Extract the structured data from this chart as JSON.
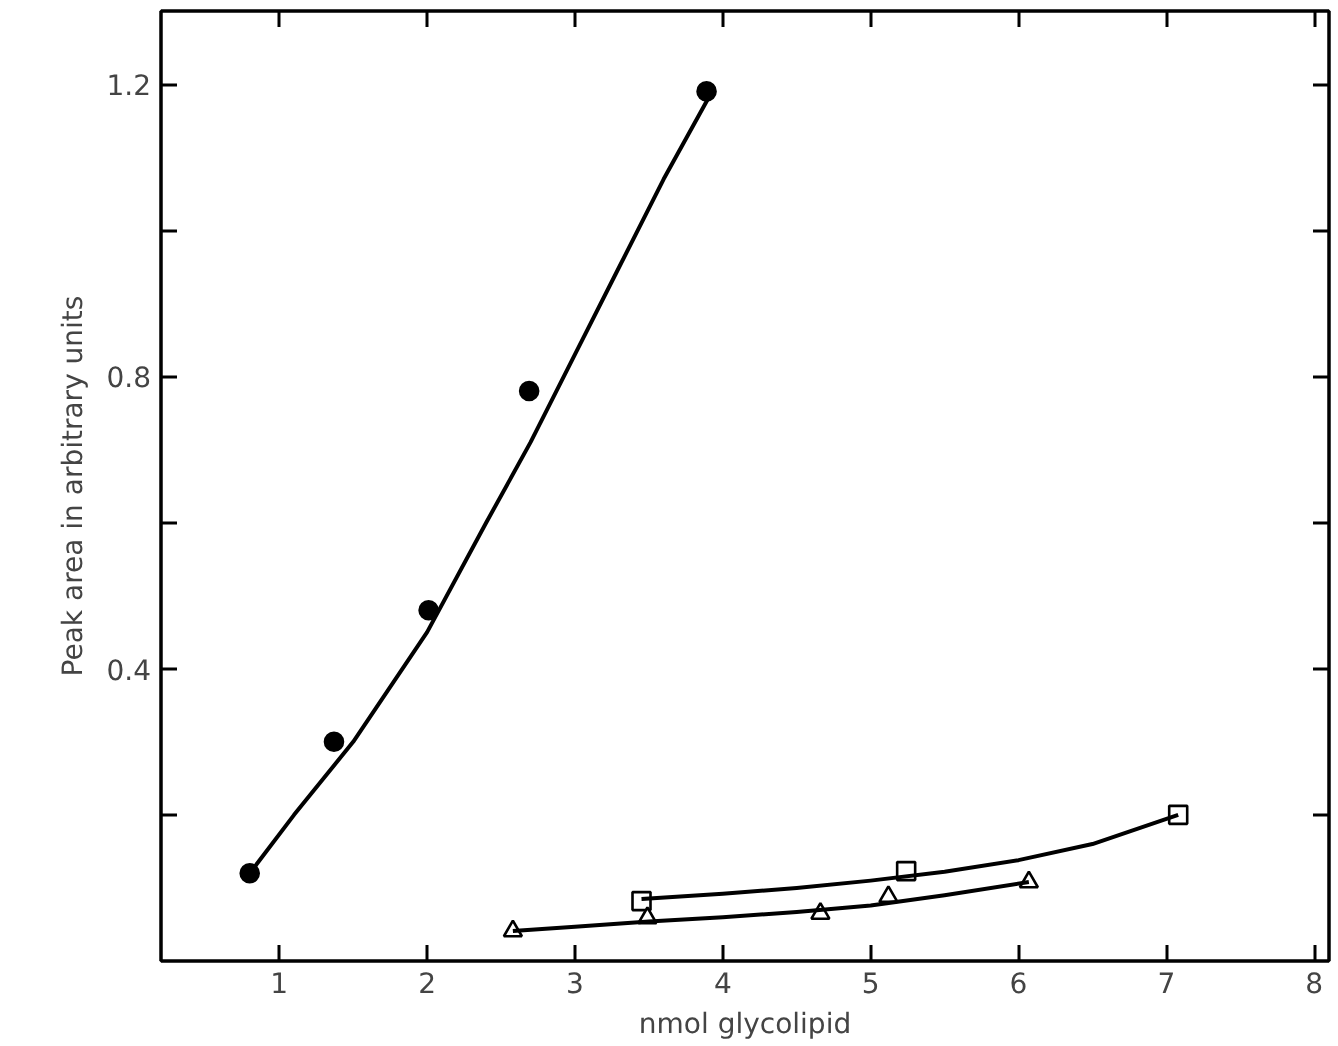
{
  "chart_data": {
    "type": "scatter",
    "xlabel": "nmol glycolipid",
    "ylabel": "Peak area in arbitrary units",
    "xlim": [
      0.2,
      8.1
    ],
    "ylim": [
      0,
      1.3
    ],
    "xticks": [
      1,
      2,
      3,
      4,
      5,
      6,
      7,
      8
    ],
    "yticks": [
      {
        "value": 0.2,
        "label": null
      },
      {
        "value": 0.4,
        "label": "0.4"
      },
      {
        "value": 0.6,
        "label": null
      },
      {
        "value": 0.8,
        "label": "0.8"
      },
      {
        "value": 1.0,
        "label": null
      },
      {
        "value": 1.2,
        "label": "1.2"
      }
    ],
    "grid": false,
    "series": [
      {
        "marker": "circle",
        "color": "#000000",
        "x": [
          0.8,
          1.37,
          2.01,
          2.69,
          3.89
        ],
        "values": [
          0.12,
          0.3,
          0.48,
          0.78,
          1.19
        ]
      },
      {
        "marker": "square",
        "color": "#000000",
        "x": [
          3.45,
          5.24,
          7.08
        ],
        "values": [
          0.082,
          0.123,
          0.2
        ]
      },
      {
        "marker": "triangle",
        "color": "#000000",
        "x": [
          2.58,
          3.49,
          4.66,
          5.12,
          6.07
        ],
        "values": [
          0.041,
          0.059,
          0.065,
          0.088,
          0.108
        ]
      },
      {
        "type": "line",
        "marker": "none",
        "line_style": "solid",
        "color": "#000000",
        "x": [
          0.8,
          1.1,
          1.5,
          2.0,
          2.4,
          2.7,
          3.0,
          3.3,
          3.6,
          3.9
        ],
        "values": [
          0.12,
          0.2,
          0.3,
          0.45,
          0.6,
          0.71,
          0.83,
          0.95,
          1.07,
          1.18
        ]
      },
      {
        "type": "line",
        "marker": "none",
        "line_style": "solid",
        "color": "#000000",
        "x": [
          3.45,
          4.0,
          4.5,
          5.0,
          5.5,
          6.0,
          6.5,
          7.08
        ],
        "values": [
          0.085,
          0.092,
          0.1,
          0.11,
          0.122,
          0.138,
          0.16,
          0.2
        ]
      },
      {
        "type": "line",
        "marker": "none",
        "line_style": "solid",
        "color": "#000000",
        "x": [
          2.58,
          3.0,
          3.5,
          4.0,
          4.5,
          5.0,
          5.5,
          6.07
        ],
        "values": [
          0.041,
          0.047,
          0.054,
          0.06,
          0.067,
          0.076,
          0.09,
          0.108
        ]
      }
    ]
  }
}
